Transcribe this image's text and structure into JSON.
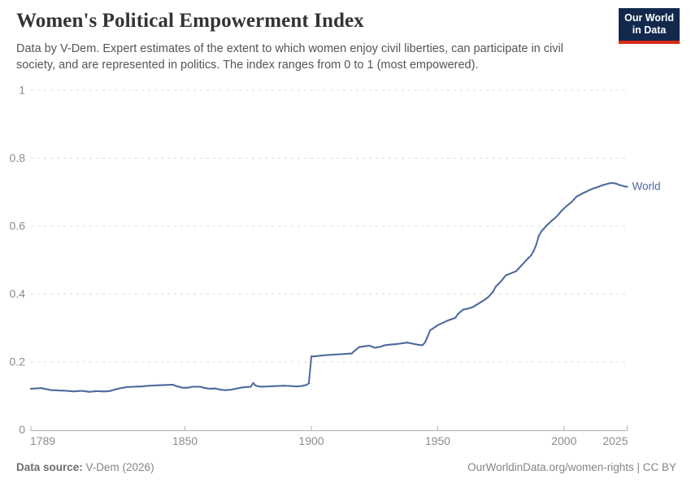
{
  "header": {
    "title": "Women's Political Empowerment Index",
    "subtitle": "Data by V-Dem. Expert estimates of the extent to which women enjoy civil liberties, can participate in civil society, and are represented in politics. The index ranges from 0 to 1 (most empowered)."
  },
  "logo": {
    "line1": "Our World",
    "line2": "in Data",
    "bg_color": "#12294d",
    "accent_color": "#dc2a12"
  },
  "chart_data": {
    "type": "line",
    "title": "Women's Political Empowerment Index",
    "xlabel": "",
    "ylabel": "",
    "xlim": [
      1789,
      2025
    ],
    "ylim": [
      0,
      1
    ],
    "grid": true,
    "yticks": [
      0,
      0.2,
      0.4,
      0.6,
      0.8,
      1
    ],
    "ytick_labels": [
      "0",
      "0.2",
      "0.4",
      "0.6",
      "0.8",
      "1"
    ],
    "xticks": [
      1789,
      1850,
      1900,
      1950,
      2000,
      2025
    ],
    "xtick_labels": [
      "1789",
      "1850",
      "1900",
      "1950",
      "2000",
      "2025"
    ],
    "legend_position": "end-of-line",
    "line_color": "#4C6A9C",
    "grid_color": "#dcdcdc",
    "axis_color": "#b3b3b3",
    "tick_label_color": "#8c8c8c",
    "series": [
      {
        "name": "World",
        "points": [
          [
            1789,
            0.121
          ],
          [
            1791,
            0.122
          ],
          [
            1793,
            0.123
          ],
          [
            1795,
            0.12
          ],
          [
            1797,
            0.117
          ],
          [
            1800,
            0.116
          ],
          [
            1803,
            0.115
          ],
          [
            1806,
            0.113
          ],
          [
            1809,
            0.115
          ],
          [
            1812,
            0.112
          ],
          [
            1815,
            0.114
          ],
          [
            1818,
            0.113
          ],
          [
            1820,
            0.114
          ],
          [
            1822,
            0.118
          ],
          [
            1824,
            0.122
          ],
          [
            1827,
            0.126
          ],
          [
            1830,
            0.127
          ],
          [
            1833,
            0.128
          ],
          [
            1836,
            0.13
          ],
          [
            1839,
            0.131
          ],
          [
            1842,
            0.132
          ],
          [
            1845,
            0.133
          ],
          [
            1847,
            0.128
          ],
          [
            1849,
            0.124
          ],
          [
            1851,
            0.124
          ],
          [
            1853,
            0.127
          ],
          [
            1856,
            0.127
          ],
          [
            1858,
            0.123
          ],
          [
            1860,
            0.121
          ],
          [
            1862,
            0.122
          ],
          [
            1864,
            0.118
          ],
          [
            1866,
            0.117
          ],
          [
            1868,
            0.118
          ],
          [
            1870,
            0.121
          ],
          [
            1872,
            0.124
          ],
          [
            1874,
            0.126
          ],
          [
            1876,
            0.127
          ],
          [
            1877,
            0.138
          ],
          [
            1878,
            0.13
          ],
          [
            1880,
            0.127
          ],
          [
            1883,
            0.128
          ],
          [
            1886,
            0.129
          ],
          [
            1889,
            0.13
          ],
          [
            1892,
            0.129
          ],
          [
            1894,
            0.128
          ],
          [
            1896,
            0.129
          ],
          [
            1898,
            0.132
          ],
          [
            1899,
            0.137
          ],
          [
            1900,
            0.216
          ],
          [
            1902,
            0.217
          ],
          [
            1904,
            0.219
          ],
          [
            1906,
            0.22
          ],
          [
            1908,
            0.221
          ],
          [
            1910,
            0.222
          ],
          [
            1912,
            0.223
          ],
          [
            1914,
            0.224
          ],
          [
            1916,
            0.225
          ],
          [
            1917,
            0.232
          ],
          [
            1918,
            0.238
          ],
          [
            1919,
            0.244
          ],
          [
            1921,
            0.246
          ],
          [
            1923,
            0.248
          ],
          [
            1925,
            0.242
          ],
          [
            1927,
            0.244
          ],
          [
            1929,
            0.249
          ],
          [
            1931,
            0.251
          ],
          [
            1933,
            0.252
          ],
          [
            1935,
            0.254
          ],
          [
            1937,
            0.256
          ],
          [
            1938,
            0.257
          ],
          [
            1940,
            0.254
          ],
          [
            1942,
            0.251
          ],
          [
            1944,
            0.249
          ],
          [
            1945,
            0.258
          ],
          [
            1946,
            0.275
          ],
          [
            1947,
            0.293
          ],
          [
            1948,
            0.298
          ],
          [
            1950,
            0.308
          ],
          [
            1952,
            0.315
          ],
          [
            1954,
            0.322
          ],
          [
            1956,
            0.327
          ],
          [
            1957,
            0.33
          ],
          [
            1958,
            0.341
          ],
          [
            1960,
            0.354
          ],
          [
            1962,
            0.357
          ],
          [
            1964,
            0.362
          ],
          [
            1966,
            0.371
          ],
          [
            1968,
            0.38
          ],
          [
            1970,
            0.391
          ],
          [
            1971,
            0.399
          ],
          [
            1972,
            0.408
          ],
          [
            1973,
            0.422
          ],
          [
            1975,
            0.437
          ],
          [
            1977,
            0.455
          ],
          [
            1979,
            0.461
          ],
          [
            1981,
            0.467
          ],
          [
            1983,
            0.483
          ],
          [
            1985,
            0.499
          ],
          [
            1987,
            0.514
          ],
          [
            1988,
            0.527
          ],
          [
            1989,
            0.545
          ],
          [
            1990,
            0.571
          ],
          [
            1991,
            0.584
          ],
          [
            1992,
            0.592
          ],
          [
            1993,
            0.601
          ],
          [
            1994,
            0.608
          ],
          [
            1995,
            0.615
          ],
          [
            1996,
            0.621
          ],
          [
            1997,
            0.628
          ],
          [
            1998,
            0.636
          ],
          [
            1999,
            0.645
          ],
          [
            2000,
            0.652
          ],
          [
            2001,
            0.659
          ],
          [
            2002,
            0.665
          ],
          [
            2003,
            0.671
          ],
          [
            2004,
            0.679
          ],
          [
            2005,
            0.687
          ],
          [
            2006,
            0.691
          ],
          [
            2007,
            0.695
          ],
          [
            2008,
            0.699
          ],
          [
            2009,
            0.702
          ],
          [
            2010,
            0.706
          ],
          [
            2011,
            0.709
          ],
          [
            2012,
            0.712
          ],
          [
            2013,
            0.714
          ],
          [
            2014,
            0.717
          ],
          [
            2015,
            0.72
          ],
          [
            2016,
            0.722
          ],
          [
            2017,
            0.724
          ],
          [
            2018,
            0.726
          ],
          [
            2019,
            0.727
          ],
          [
            2020,
            0.726
          ],
          [
            2021,
            0.724
          ],
          [
            2022,
            0.721
          ],
          [
            2023,
            0.719
          ],
          [
            2024,
            0.717
          ],
          [
            2025,
            0.716
          ]
        ]
      }
    ]
  },
  "footer": {
    "source_label": "Data source:",
    "source_value": " V-Dem (2026)",
    "credit": "OurWorldinData.org/women-rights | CC BY"
  }
}
